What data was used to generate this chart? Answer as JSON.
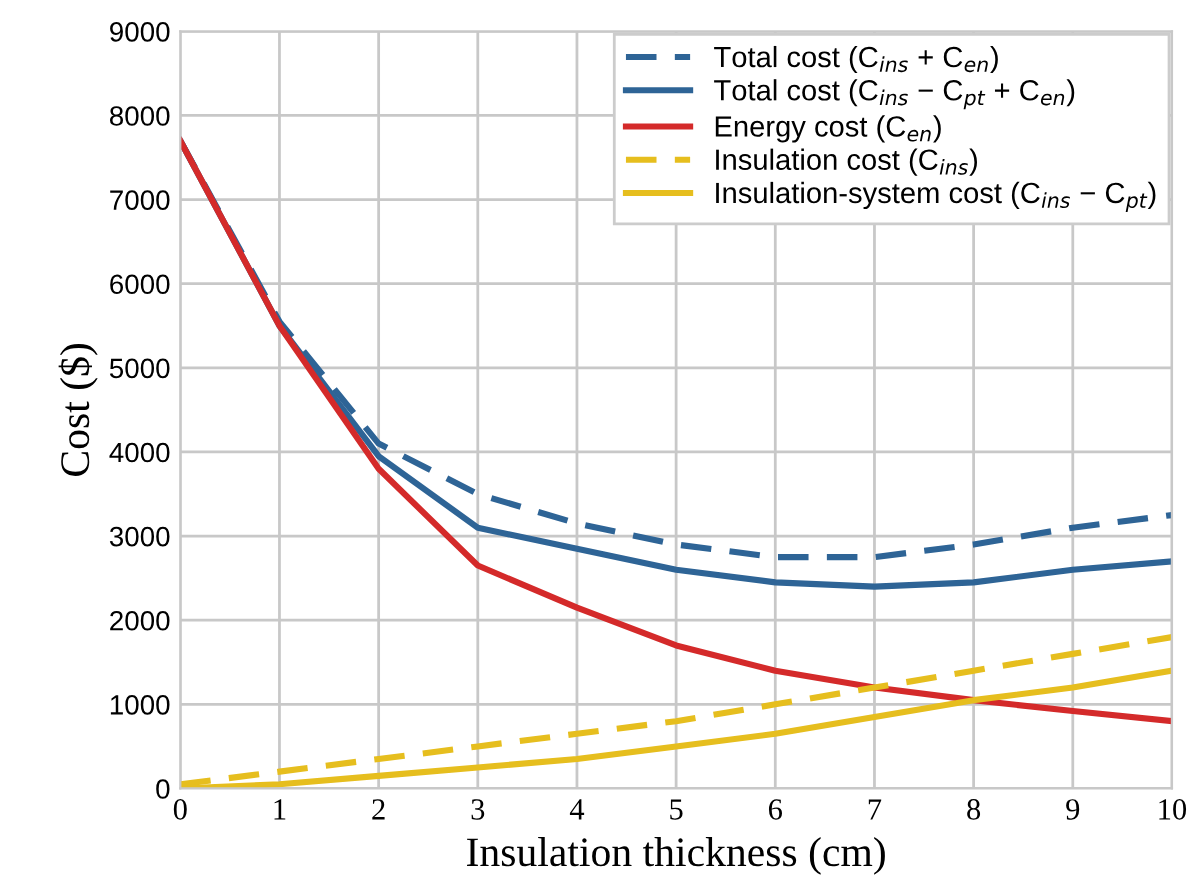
{
  "chart_data": {
    "type": "line",
    "xlabel": "Insulation thickness (cm)",
    "ylabel": "Cost ($)",
    "x": [
      0,
      1,
      2,
      3,
      4,
      5,
      6,
      7,
      8,
      9,
      10
    ],
    "series": [
      {
        "name": "Total cost (C$_{ins}$ + C$_{en}$)",
        "color": "#2e6496",
        "line_style": "dashed",
        "values": [
          7700,
          5550,
          4100,
          3500,
          3150,
          2900,
          2750,
          2750,
          2900,
          3100,
          3250
        ]
      },
      {
        "name": "Total cost (C$_{ins}$ − C$_{pt}$ + C$_{en}$)",
        "color": "#2e6496",
        "line_style": "solid",
        "values": [
          7700,
          5500,
          3950,
          3100,
          2850,
          2600,
          2450,
          2400,
          2450,
          2600,
          2700
        ]
      },
      {
        "name": "Energy cost (C$_{en}$)",
        "color": "#d42a2a",
        "line_style": "solid",
        "values": [
          7700,
          5500,
          3800,
          2650,
          2150,
          1700,
          1400,
          1200,
          1050,
          920,
          800
        ]
      },
      {
        "name": "Insulation cost (C$_{ins}$)",
        "color": "#e6be1e",
        "line_style": "dashed",
        "values": [
          50,
          200,
          350,
          500,
          650,
          800,
          1000,
          1200,
          1400,
          1600,
          1800
        ]
      },
      {
        "name": "Insulation-system cost (C$_{ins}$ − C$_{pt}$)",
        "color": "#e6be1e",
        "line_style": "solid",
        "values": [
          0,
          50,
          150,
          250,
          350,
          500,
          650,
          850,
          1050,
          1200,
          1400
        ]
      }
    ],
    "xlim": [
      0,
      10
    ],
    "xticks": [
      0,
      1,
      2,
      3,
      4,
      5,
      6,
      7,
      8,
      9,
      10
    ],
    "ylim": [
      0,
      9000
    ],
    "yticks": [
      0,
      1000,
      2000,
      3000,
      4000,
      5000,
      6000,
      7000,
      8000,
      9000
    ],
    "grid": true,
    "legend": "top right",
    "marker": "none"
  }
}
